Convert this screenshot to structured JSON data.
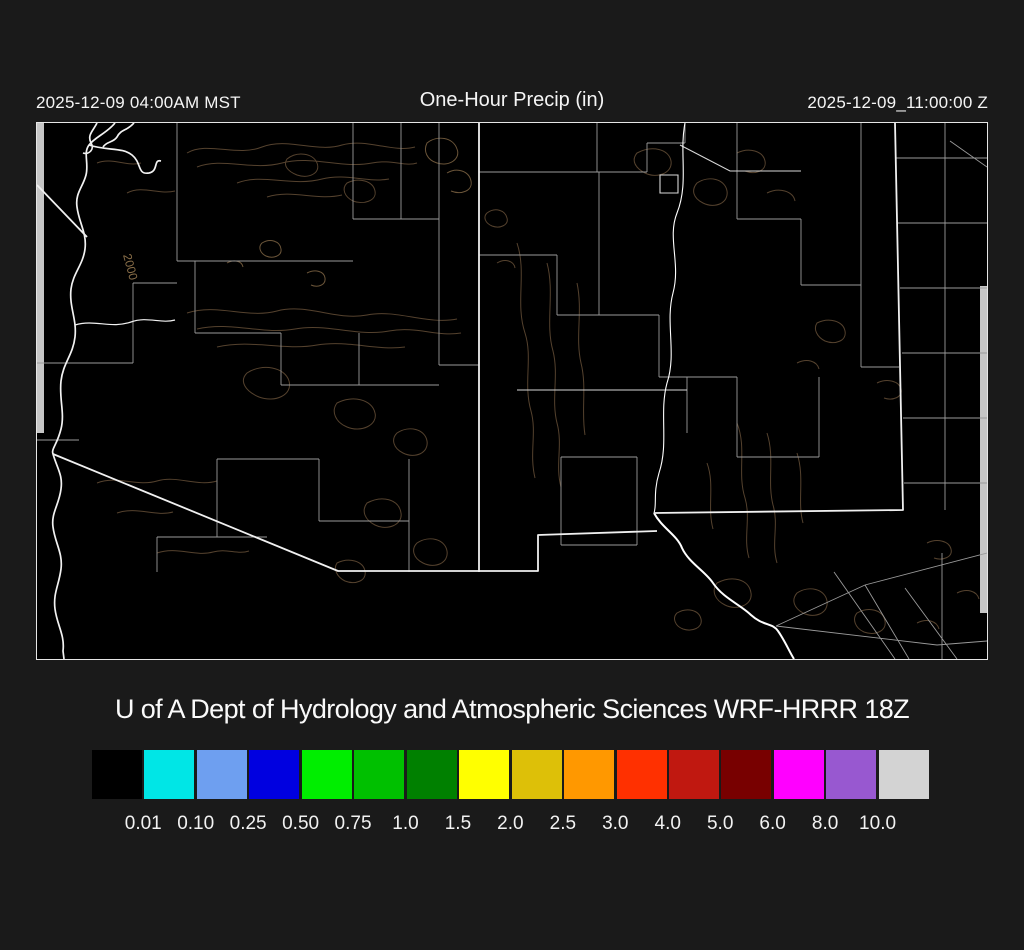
{
  "header": {
    "left_timestamp": "2025-12-09 04:00AM MST",
    "title": "One-Hour Precip (in)",
    "right_timestamp": "2025-12-09_11:00:00 Z"
  },
  "attribution": "U of A Dept of Hydrology and Atmospheric Sciences WRF-HRRR 18Z",
  "map": {
    "contour_label": "2000",
    "colors": {
      "background": "#000000",
      "state_border": "#f0f0f0",
      "river": "#ffffff",
      "county_line": "#9a9a9a",
      "contour": "#55422e",
      "contour_bright": "#6b5539",
      "domain_edge": "#c6c6c6",
      "frame": "#e6e6e6"
    }
  },
  "colorbar": {
    "units": "in",
    "cells": [
      {
        "color": "#000000"
      },
      {
        "color": "#00e6e6"
      },
      {
        "color": "#6e9ff0"
      },
      {
        "color": "#0000e0"
      },
      {
        "color": "#00ee00"
      },
      {
        "color": "#00c000"
      },
      {
        "color": "#008000"
      },
      {
        "color": "#ffff00"
      },
      {
        "color": "#ddc008"
      },
      {
        "color": "#ff9800"
      },
      {
        "color": "#ff3000"
      },
      {
        "color": "#c01810"
      },
      {
        "color": "#780000"
      },
      {
        "color": "#ff00ff"
      },
      {
        "color": "#9858d0"
      },
      {
        "color": "#d3d3d3"
      }
    ],
    "tick_labels": [
      "0.01",
      "0.10",
      "0.25",
      "0.50",
      "0.75",
      "1.0",
      "1.5",
      "2.0",
      "2.5",
      "3.0",
      "4.0",
      "5.0",
      "6.0",
      "8.0",
      "10.0"
    ]
  }
}
